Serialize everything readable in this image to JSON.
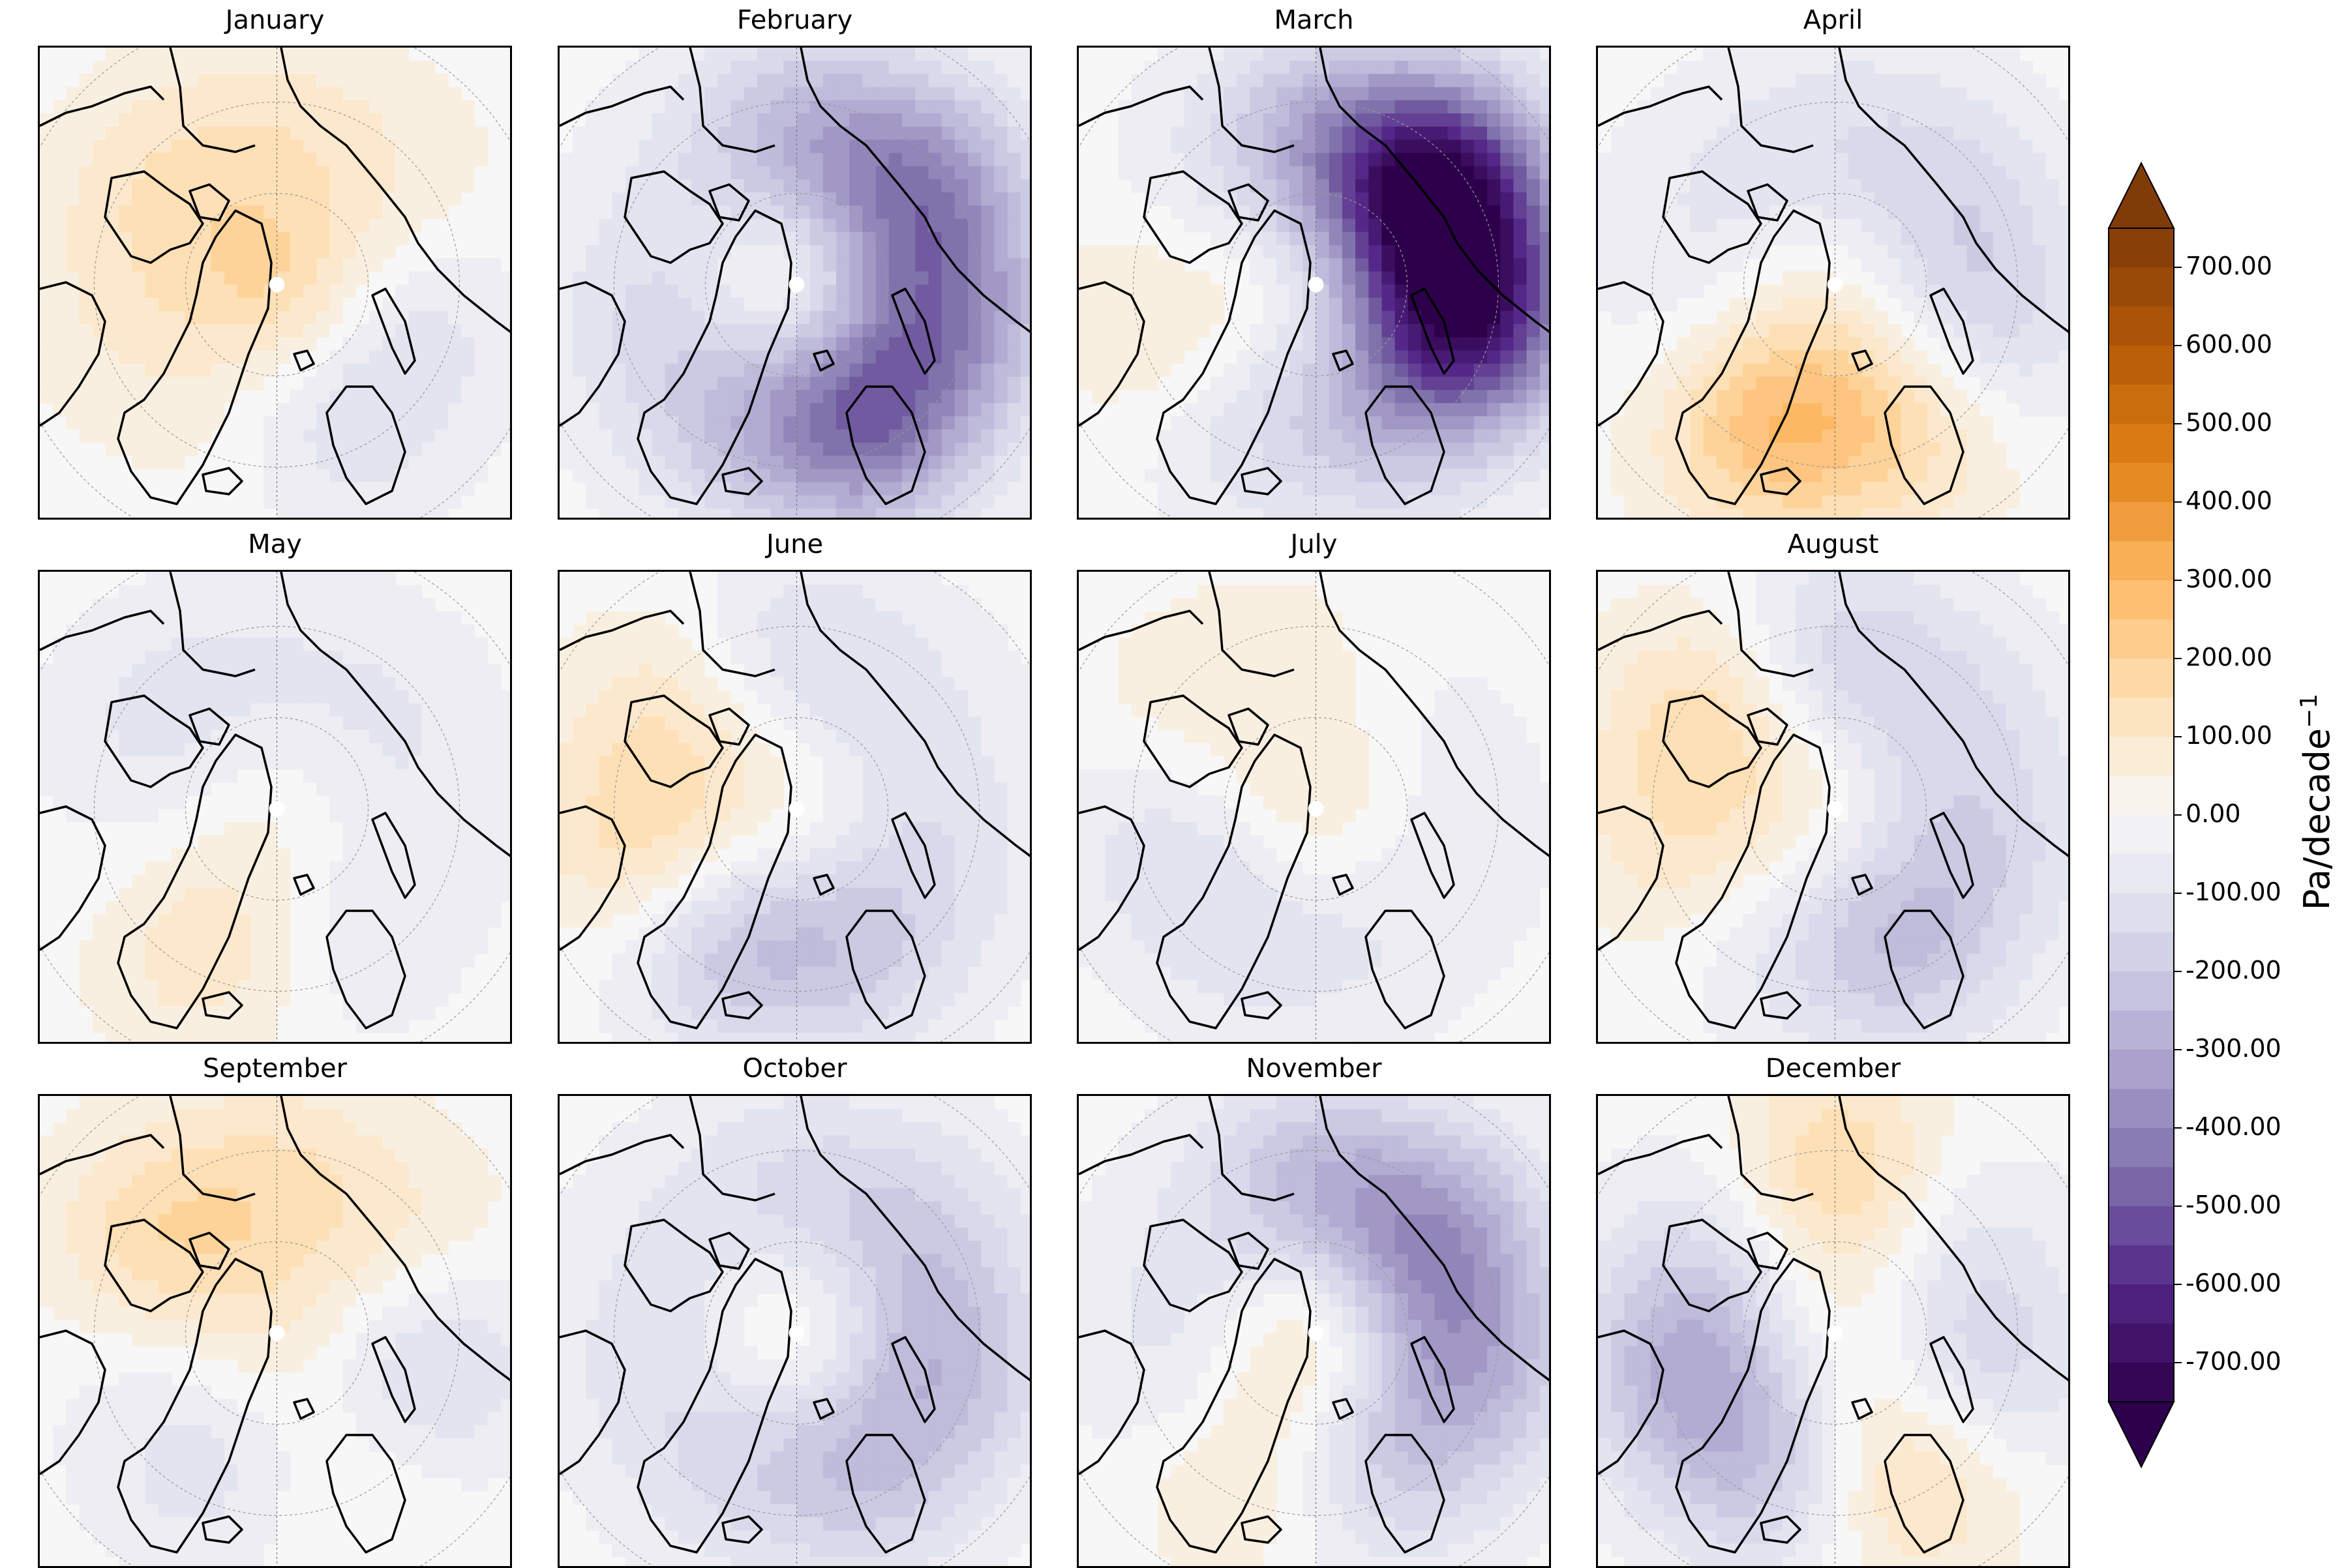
{
  "chart_data": {
    "type": "heatmap",
    "projection": "north-polar-stereographic",
    "panels": [
      {
        "title": "January",
        "pattern": [
          150,
          80,
          60,
          -80,
          -100,
          30,
          60,
          100
        ]
      },
      {
        "title": "February",
        "pattern": [
          150,
          -200,
          -350,
          -300,
          -400,
          -150,
          -100,
          -50
        ]
      },
      {
        "title": "March",
        "pattern": [
          60,
          -200,
          -700,
          -600,
          -150,
          -100,
          100,
          -50
        ]
      },
      {
        "title": "April",
        "pattern": [
          50,
          -80,
          -120,
          -150,
          150,
          250,
          -50,
          -60
        ]
      },
      {
        "title": "May",
        "pattern": [
          40,
          -50,
          -60,
          -40,
          -60,
          120,
          -20,
          -80
        ]
      },
      {
        "title": "June",
        "pattern": [
          60,
          -120,
          -60,
          -80,
          -150,
          -200,
          150,
          100
        ]
      },
      {
        "title": "July",
        "pattern": [
          80,
          30,
          -30,
          -40,
          -50,
          -80,
          -100,
          60
        ]
      },
      {
        "title": "August",
        "pattern": [
          50,
          -150,
          -100,
          -120,
          -200,
          -60,
          100,
          150
        ]
      },
      {
        "title": "September",
        "pattern": [
          60,
          100,
          80,
          -150,
          60,
          -100,
          -30,
          150
        ]
      },
      {
        "title": "October",
        "pattern": [
          120,
          -100,
          -150,
          -200,
          -180,
          -100,
          -80,
          -60
        ]
      },
      {
        "title": "November",
        "pattern": [
          150,
          -200,
          -300,
          -250,
          -150,
          100,
          -80,
          -50
        ]
      },
      {
        "title": "December",
        "pattern": [
          60,
          200,
          -80,
          -150,
          180,
          -200,
          -250,
          -100
        ]
      }
    ],
    "colorbar": {
      "label": "Pa/decade",
      "label_exponent": "−1",
      "vmin": -750,
      "vmax": 750,
      "ticks": [
        "700.00",
        "600.00",
        "500.00",
        "400.00",
        "300.00",
        "200.00",
        "100.00",
        "0.00",
        "-100.00",
        "-200.00",
        "-300.00",
        "-400.00",
        "-500.00",
        "-600.00",
        "-700.00"
      ],
      "tick_values": [
        700,
        600,
        500,
        400,
        300,
        200,
        100,
        0,
        -100,
        -200,
        -300,
        -400,
        -500,
        -600,
        -700
      ],
      "extend": "both",
      "colormap": "PuOr_r",
      "neg_color": "#2d004b",
      "mid_color": "#f7f7f7",
      "pos_color": "#7f3b08"
    }
  }
}
